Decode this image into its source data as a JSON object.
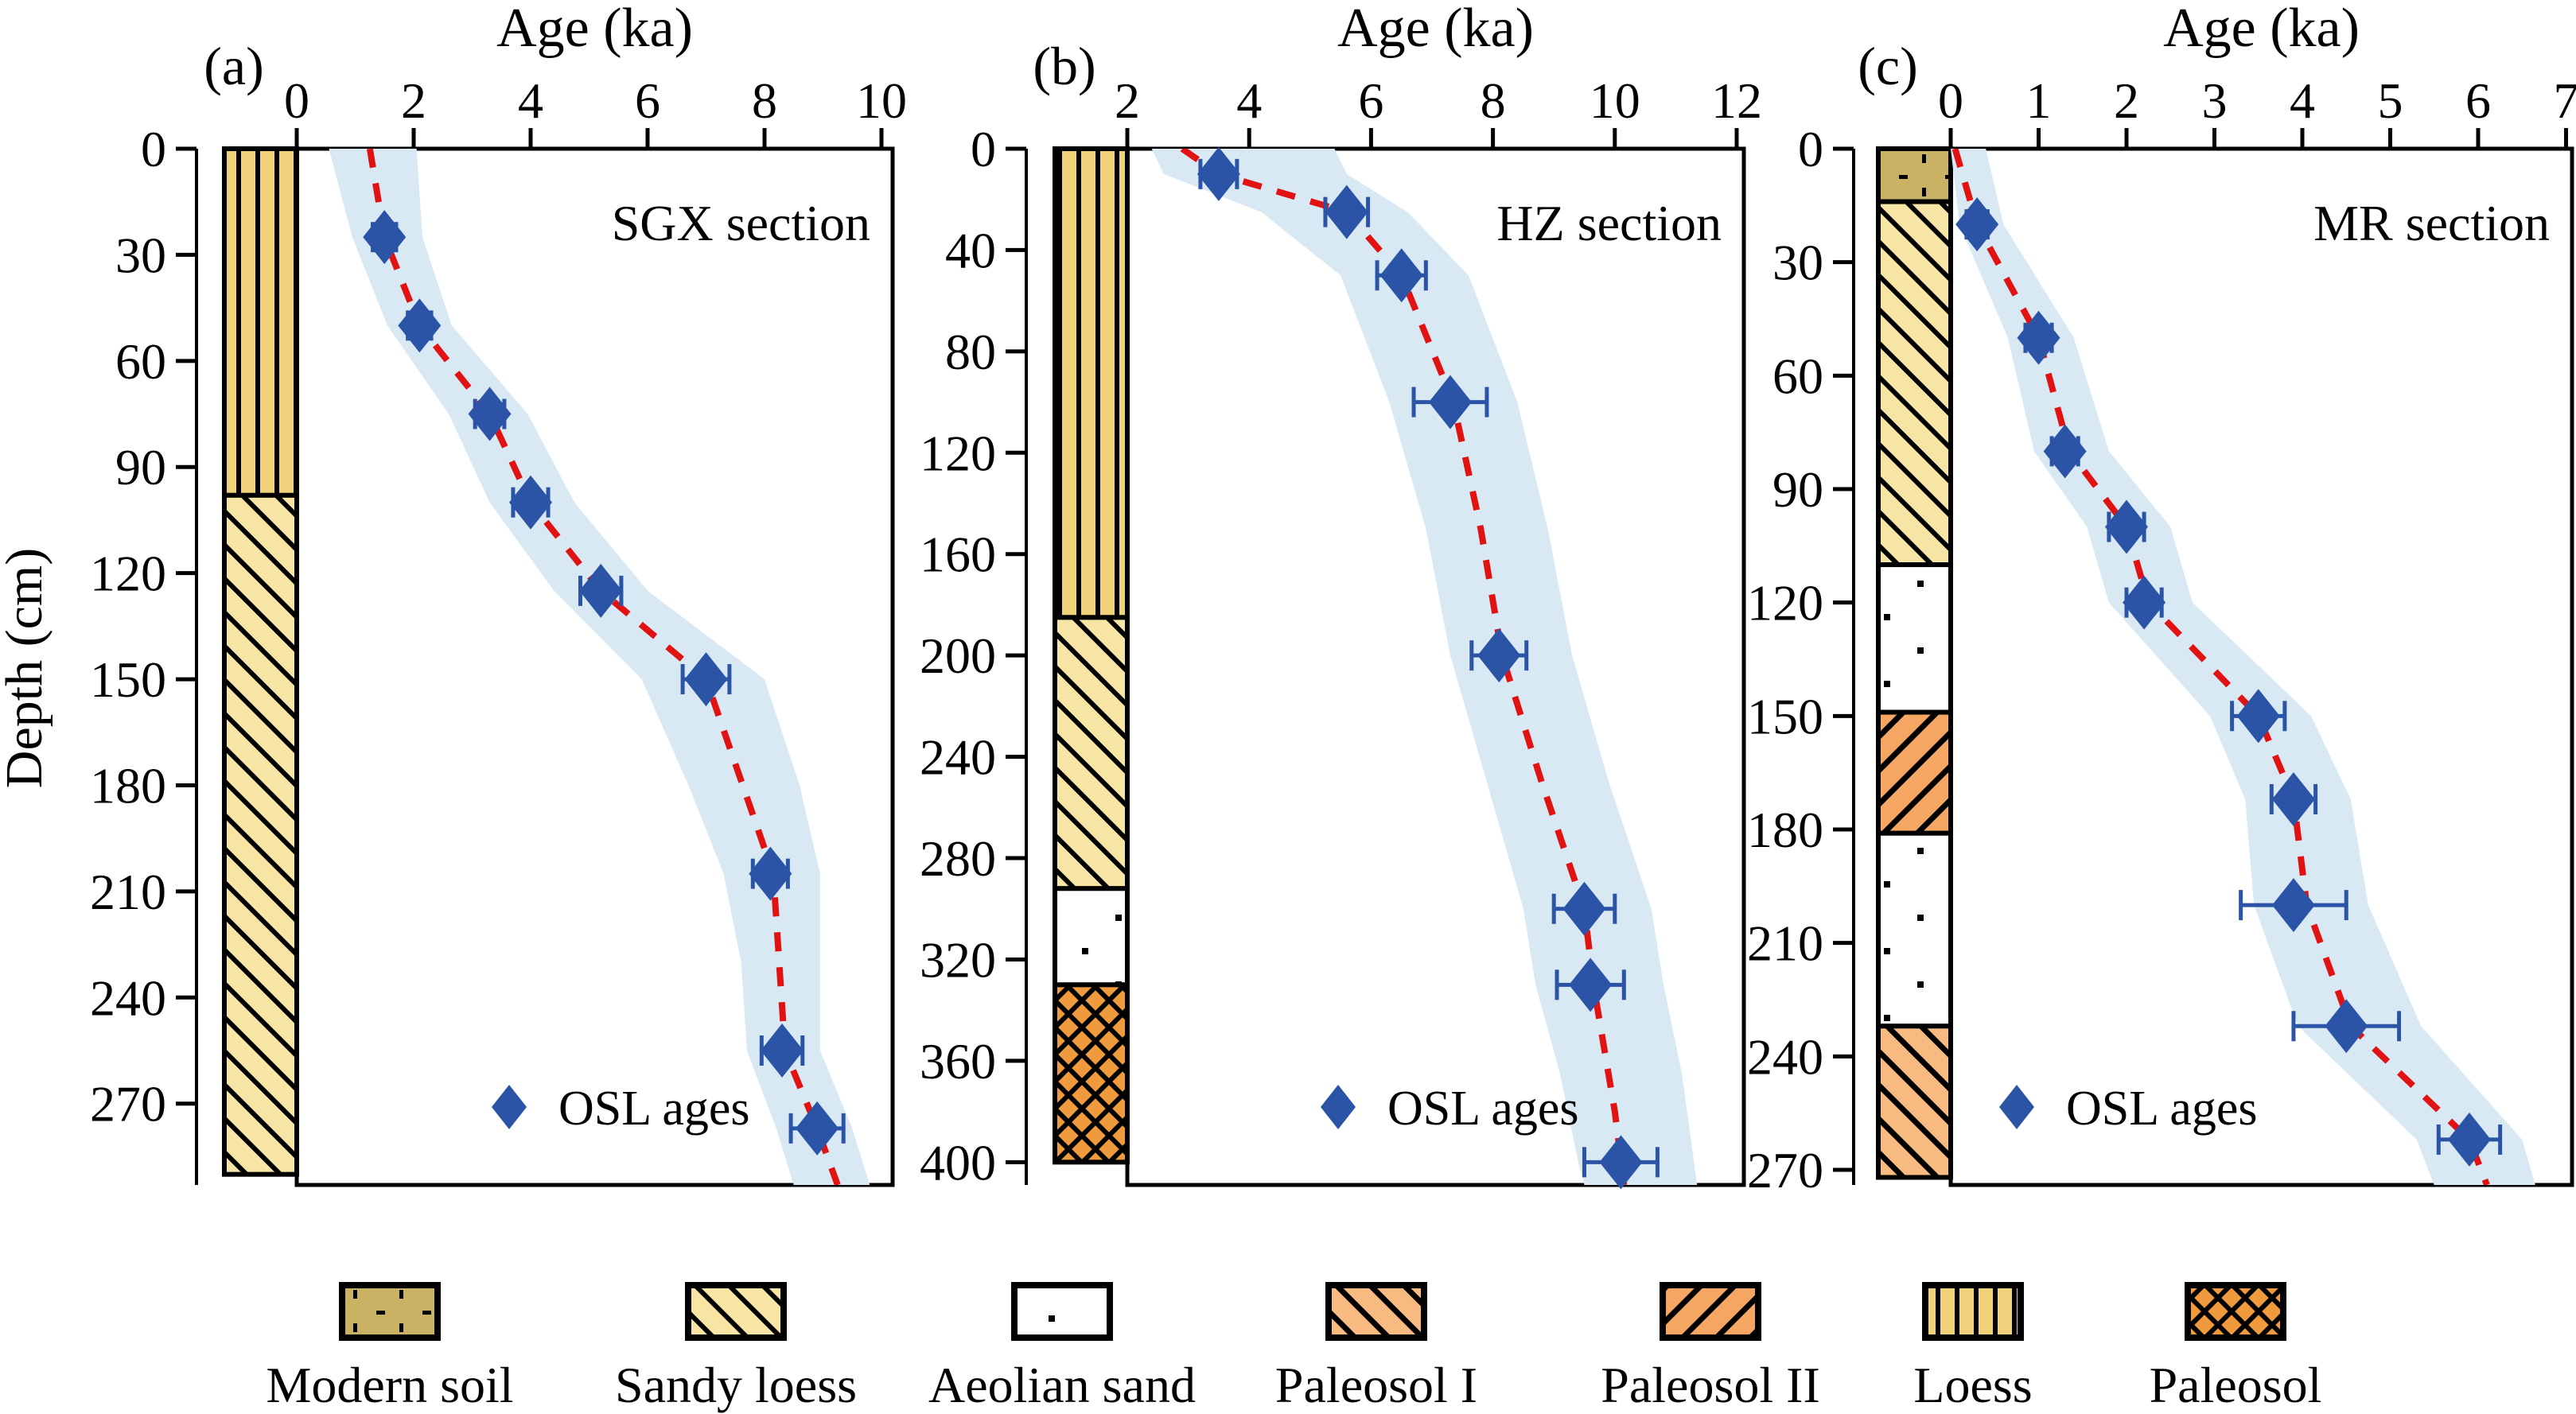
{
  "figure": {
    "xlabel": "Age (ka)",
    "ylabel": "Depth (cm)"
  },
  "chart_data": [
    {
      "type": "scatter",
      "panel_label": "(a)",
      "section_title": "SGX section",
      "xlabel": "Age (ka)",
      "ylabel": "Depth (cm)",
      "legend_label": "OSL ages",
      "xlim": [
        0,
        10.2
      ],
      "ylim": [
        0,
        293
      ],
      "x_ticks": [
        0,
        2,
        4,
        6,
        8,
        10
      ],
      "y_ticks": [
        0,
        30,
        60,
        90,
        120,
        150,
        180,
        210,
        240,
        270
      ],
      "osl_ages": [
        {
          "age": 1.5,
          "depth": 25,
          "err": 0.2
        },
        {
          "age": 2.1,
          "depth": 50,
          "err": 0.2
        },
        {
          "age": 3.3,
          "depth": 75,
          "err": 0.25
        },
        {
          "age": 4.0,
          "depth": 100,
          "err": 0.3
        },
        {
          "age": 5.2,
          "depth": 125,
          "err": 0.35
        },
        {
          "age": 7.0,
          "depth": 150,
          "err": 0.4
        },
        {
          "age": 8.1,
          "depth": 205,
          "err": 0.3
        },
        {
          "age": 8.3,
          "depth": 255,
          "err": 0.35
        },
        {
          "age": 8.9,
          "depth": 277,
          "err": 0.45
        }
      ],
      "model_line": [
        [
          1.25,
          0
        ],
        [
          1.5,
          25
        ],
        [
          2.1,
          50
        ],
        [
          3.3,
          75
        ],
        [
          4.0,
          100
        ],
        [
          5.2,
          125
        ],
        [
          7.0,
          150
        ],
        [
          8.15,
          205
        ],
        [
          8.35,
          255
        ],
        [
          8.9,
          277
        ],
        [
          9.25,
          293
        ]
      ],
      "envelope": [
        [
          0,
          0.55,
          2.05
        ],
        [
          25,
          0.95,
          2.15
        ],
        [
          50,
          1.55,
          2.65
        ],
        [
          75,
          2.6,
          3.95
        ],
        [
          100,
          3.3,
          4.75
        ],
        [
          125,
          4.4,
          6.0
        ],
        [
          150,
          5.9,
          8.0
        ],
        [
          180,
          6.7,
          8.6
        ],
        [
          205,
          7.3,
          8.95
        ],
        [
          230,
          7.6,
          8.95
        ],
        [
          255,
          7.7,
          8.95
        ],
        [
          277,
          8.2,
          9.5
        ],
        [
          293,
          8.5,
          9.8
        ]
      ],
      "column_layers": [
        {
          "unit": "loess",
          "label": "Loess",
          "from": 0,
          "to": 98
        },
        {
          "unit": "sandy_loess",
          "label": "Sandy loess",
          "from": 98,
          "to": 290
        }
      ]
    },
    {
      "type": "scatter",
      "panel_label": "(b)",
      "section_title": "HZ section",
      "xlabel": "Age (ka)",
      "ylabel": "Depth (cm)",
      "legend_label": "OSL ages",
      "xlim": [
        2,
        12.2
      ],
      "ylim": [
        0,
        409
      ],
      "x_ticks": [
        2,
        4,
        6,
        8,
        10,
        12
      ],
      "y_ticks": [
        0,
        40,
        80,
        120,
        160,
        200,
        240,
        280,
        320,
        360,
        400
      ],
      "osl_ages": [
        {
          "age": 3.5,
          "depth": 10,
          "err": 0.3
        },
        {
          "age": 5.6,
          "depth": 25,
          "err": 0.35
        },
        {
          "age": 6.5,
          "depth": 50,
          "err": 0.4
        },
        {
          "age": 7.3,
          "depth": 100,
          "err": 0.6
        },
        {
          "age": 8.1,
          "depth": 200,
          "err": 0.45
        },
        {
          "age": 9.5,
          "depth": 300,
          "err": 0.5
        },
        {
          "age": 9.6,
          "depth": 330,
          "err": 0.55
        },
        {
          "age": 10.1,
          "depth": 400,
          "err": 0.6
        }
      ],
      "model_line": [
        [
          2.9,
          0
        ],
        [
          3.5,
          10
        ],
        [
          5.6,
          25
        ],
        [
          6.5,
          50
        ],
        [
          7.35,
          100
        ],
        [
          7.8,
          150
        ],
        [
          8.15,
          200
        ],
        [
          8.8,
          250
        ],
        [
          9.5,
          300
        ],
        [
          9.65,
          330
        ],
        [
          10.0,
          380
        ],
        [
          10.15,
          409
        ]
      ],
      "envelope": [
        [
          0,
          2.4,
          5.4
        ],
        [
          10,
          2.6,
          5.6
        ],
        [
          25,
          4.2,
          6.6
        ],
        [
          50,
          5.5,
          7.6
        ],
        [
          100,
          6.3,
          8.4
        ],
        [
          150,
          6.9,
          8.9
        ],
        [
          200,
          7.3,
          9.3
        ],
        [
          250,
          7.9,
          9.9
        ],
        [
          300,
          8.5,
          10.6
        ],
        [
          330,
          8.7,
          10.8
        ],
        [
          365,
          9.1,
          11.1
        ],
        [
          400,
          9.4,
          11.3
        ],
        [
          409,
          9.5,
          11.35
        ]
      ],
      "column_layers": [
        {
          "unit": "loess",
          "label": "Loess",
          "from": 0,
          "to": 185
        },
        {
          "unit": "sandy_loess",
          "label": "Sandy loess",
          "from": 185,
          "to": 292
        },
        {
          "unit": "aeolian_sand",
          "label": "Aeolian sand",
          "from": 292,
          "to": 330
        },
        {
          "unit": "paleosol_cross",
          "label": "Paleosol",
          "from": 330,
          "to": 400
        }
      ]
    },
    {
      "type": "scatter",
      "panel_label": "(c)",
      "section_title": "MR section",
      "xlabel": "Age (ka)",
      "ylabel": "Depth (cm)",
      "legend_label": "OSL ages",
      "xlim": [
        0,
        7.1
      ],
      "ylim": [
        0,
        274
      ],
      "x_ticks": [
        0,
        1,
        2,
        3,
        4,
        5,
        6,
        7
      ],
      "y_ticks": [
        0,
        30,
        60,
        90,
        120,
        150,
        180,
        210,
        240,
        270
      ],
      "osl_ages": [
        {
          "age": 0.3,
          "depth": 20,
          "err": 0.12
        },
        {
          "age": 1.0,
          "depth": 50,
          "err": 0.15
        },
        {
          "age": 1.3,
          "depth": 80,
          "err": 0.15
        },
        {
          "age": 2.0,
          "depth": 100,
          "err": 0.2
        },
        {
          "age": 2.2,
          "depth": 120,
          "err": 0.2
        },
        {
          "age": 3.5,
          "depth": 150,
          "err": 0.3
        },
        {
          "age": 3.9,
          "depth": 172,
          "err": 0.25
        },
        {
          "age": 3.9,
          "depth": 200,
          "err": 0.6
        },
        {
          "age": 4.5,
          "depth": 232,
          "err": 0.6
        },
        {
          "age": 5.9,
          "depth": 262,
          "err": 0.35
        }
      ],
      "model_line": [
        [
          0.05,
          0
        ],
        [
          0.3,
          20
        ],
        [
          1.0,
          50
        ],
        [
          1.35,
          80
        ],
        [
          2.0,
          100
        ],
        [
          2.25,
          120
        ],
        [
          3.5,
          150
        ],
        [
          3.9,
          172
        ],
        [
          4.05,
          200
        ],
        [
          4.55,
          232
        ],
        [
          5.9,
          262
        ],
        [
          6.1,
          274
        ]
      ],
      "envelope": [
        [
          0,
          0.0,
          0.4
        ],
        [
          20,
          0.1,
          0.6
        ],
        [
          50,
          0.65,
          1.4
        ],
        [
          80,
          0.95,
          1.8
        ],
        [
          100,
          1.55,
          2.5
        ],
        [
          120,
          1.8,
          2.75
        ],
        [
          150,
          2.95,
          4.1
        ],
        [
          172,
          3.35,
          4.55
        ],
        [
          200,
          3.45,
          4.75
        ],
        [
          232,
          3.95,
          5.35
        ],
        [
          262,
          5.3,
          6.5
        ],
        [
          274,
          5.5,
          6.65
        ]
      ],
      "column_layers": [
        {
          "unit": "modern_soil",
          "label": "Modern soil",
          "from": 0,
          "to": 14
        },
        {
          "unit": "sandy_loess",
          "label": "Sandy loess",
          "from": 14,
          "to": 110
        },
        {
          "unit": "aeolian_sand",
          "label": "Aeolian sand",
          "from": 110,
          "to": 149
        },
        {
          "unit": "paleosol_2",
          "label": "Paleosol II",
          "from": 149,
          "to": 181
        },
        {
          "unit": "aeolian_sand",
          "label": "Aeolian sand",
          "from": 181,
          "to": 232
        },
        {
          "unit": "paleosol_1",
          "label": "Paleosol I",
          "from": 232,
          "to": 272
        }
      ]
    }
  ],
  "legend": {
    "items": [
      {
        "label": "Modern soil",
        "unit": "modern_soil"
      },
      {
        "label": "Sandy loess",
        "unit": "sandy_loess"
      },
      {
        "label": "Aeolian sand",
        "unit": "aeolian_sand"
      },
      {
        "label": "Paleosol I",
        "unit": "paleosol_1"
      },
      {
        "label": "Paleosol II",
        "unit": "paleosol_2"
      },
      {
        "label": "Loess",
        "unit": "loess"
      },
      {
        "label": "Paleosol",
        "unit": "paleosol_cross"
      }
    ]
  },
  "colors": {
    "loess": "#F0D27A",
    "sandy_loess": "#F6E5A4",
    "modern_soil": "#C9B264",
    "aeolian_sand": "#FFFFFF",
    "paleosol_1": "#F7BA80",
    "paleosol_2": "#F4A662",
    "paleosol_cross": "#F09A3E",
    "envelope": "#D8E9F4",
    "model_line": "#E01212",
    "marker": "#2B54A6",
    "axis": "#000000"
  }
}
